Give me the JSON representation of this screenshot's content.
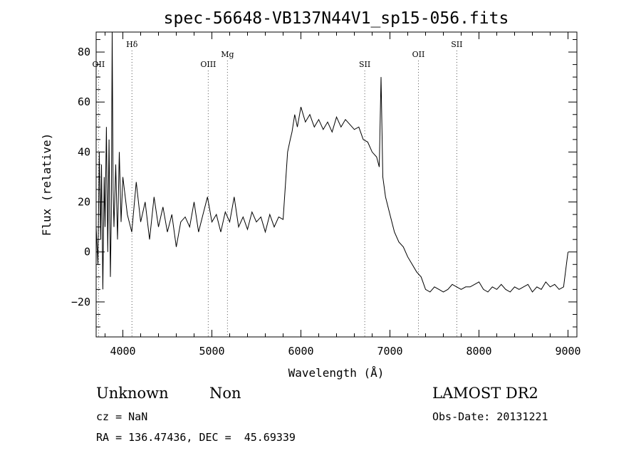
{
  "chart_data": {
    "type": "line",
    "title": "spec-56648-VB137N44V1_sp15-056.fits",
    "xlabel": "Wavelength (Å)",
    "ylabel": "Flux (relative)",
    "xlim": [
      3700,
      9100
    ],
    "ylim": [
      -34,
      88
    ],
    "xticks": [
      4000,
      5000,
      6000,
      7000,
      8000,
      9000
    ],
    "xtick_labels": [
      "4000",
      "5000",
      "6000",
      "7000",
      "8000",
      "9000"
    ],
    "yticks": [
      -20,
      0,
      20,
      40,
      60,
      80
    ],
    "ytick_labels": [
      "−20",
      "0",
      "20",
      "40",
      "60",
      "80"
    ],
    "grid": false,
    "line_color": "#000000",
    "lines": [
      {
        "label": "OII",
        "x": 3727,
        "label_y": 74
      },
      {
        "label": "Hδ",
        "x": 4102,
        "label_y": 82
      },
      {
        "label": "OIII",
        "x": 4959,
        "label_y": 74
      },
      {
        "label": "Mg",
        "x": 5175,
        "label_y": 78
      },
      {
        "label": "SII",
        "x": 6717,
        "label_y": 74
      },
      {
        "label": "OII",
        "x": 7320,
        "label_y": 78
      },
      {
        "label": "SII",
        "x": 7751,
        "label_y": 82
      }
    ],
    "series": [
      {
        "name": "flux",
        "x": [
          3700,
          3720,
          3735,
          3750,
          3760,
          3775,
          3790,
          3800,
          3815,
          3830,
          3845,
          3860,
          3870,
          3880,
          3890,
          3900,
          3920,
          3940,
          3960,
          3980,
          4000,
          4050,
          4100,
          4150,
          4200,
          4250,
          4300,
          4350,
          4400,
          4450,
          4500,
          4550,
          4600,
          4650,
          4700,
          4750,
          4800,
          4850,
          4900,
          4950,
          5000,
          5050,
          5100,
          5150,
          5200,
          5250,
          5300,
          5350,
          5400,
          5450,
          5500,
          5550,
          5600,
          5650,
          5700,
          5750,
          5800,
          5850,
          5880,
          5900,
          5930,
          5960,
          6000,
          6050,
          6100,
          6150,
          6200,
          6250,
          6300,
          6350,
          6400,
          6450,
          6500,
          6550,
          6600,
          6650,
          6700,
          6750,
          6800,
          6850,
          6880,
          6900,
          6920,
          6950,
          7000,
          7050,
          7100,
          7150,
          7200,
          7250,
          7300,
          7350,
          7400,
          7450,
          7500,
          7550,
          7600,
          7650,
          7700,
          7750,
          7800,
          7850,
          7900,
          7950,
          8000,
          8050,
          8100,
          8150,
          8200,
          8250,
          8300,
          8350,
          8400,
          8450,
          8500,
          8550,
          8600,
          8650,
          8700,
          8750,
          8800,
          8850,
          8900,
          8950,
          9000
        ],
        "values": [
          10,
          -5,
          40,
          5,
          35,
          -15,
          30,
          10,
          50,
          0,
          45,
          -10,
          15,
          88,
          25,
          10,
          35,
          5,
          40,
          12,
          30,
          15,
          8,
          28,
          12,
          20,
          5,
          22,
          10,
          18,
          8,
          15,
          2,
          12,
          14,
          10,
          20,
          8,
          15,
          22,
          12,
          15,
          8,
          16,
          12,
          22,
          10,
          14,
          9,
          16,
          12,
          14,
          8,
          15,
          10,
          14,
          13,
          40,
          45,
          48,
          55,
          50,
          58,
          52,
          55,
          50,
          53,
          49,
          52,
          48,
          54,
          50,
          53,
          51,
          49,
          50,
          45,
          44,
          40,
          38,
          34,
          70,
          30,
          22,
          15,
          8,
          4,
          2,
          -2,
          -5,
          -8,
          -10,
          -15,
          -16,
          -14,
          -15,
          -16,
          -15,
          -13,
          -14,
          -15,
          -14,
          -14,
          -13,
          -12,
          -15,
          -16,
          -14,
          -15,
          -13,
          -15,
          -16,
          -14,
          -15,
          -14,
          -13,
          -16,
          -14,
          -15,
          -12,
          -14,
          -13,
          -15,
          -14,
          0
        ]
      }
    ]
  },
  "info": {
    "class_label": "Unknown",
    "subclass_label": "Non",
    "cz": "cz = NaN",
    "radec": "RA = 136.47436, DEC =  45.69339",
    "survey": "LAMOST DR2",
    "obs_date": "Obs-Date: 20131221"
  }
}
